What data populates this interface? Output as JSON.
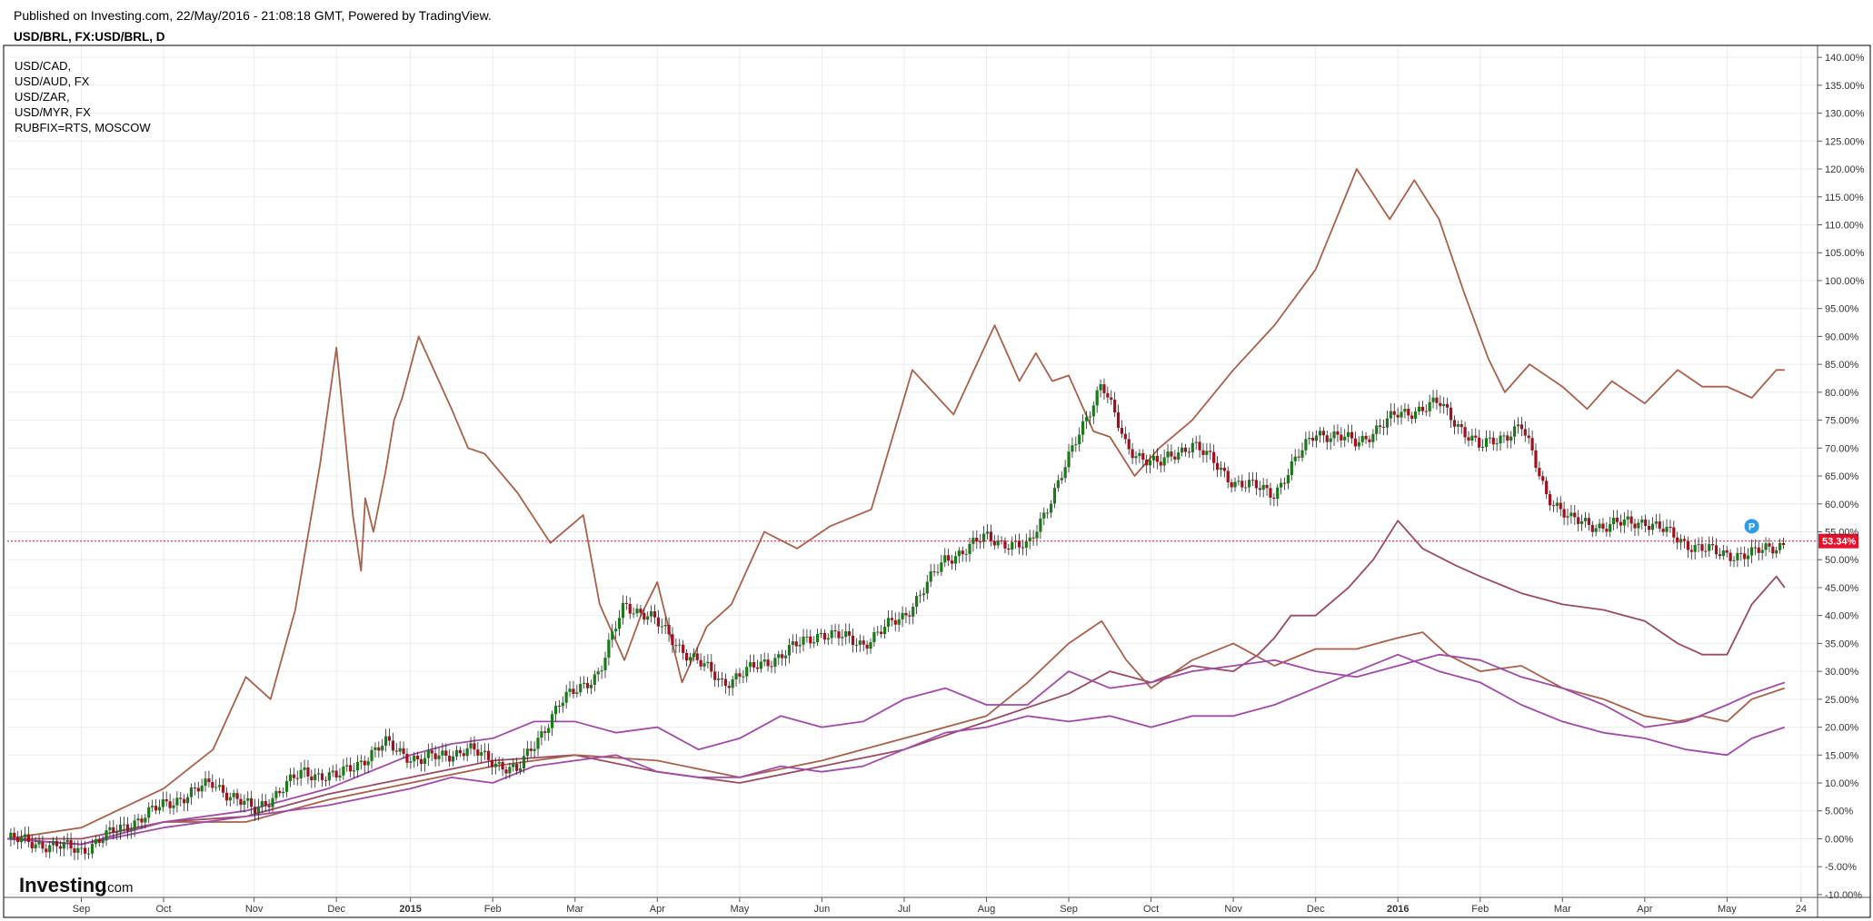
{
  "header": {
    "published": "Published on Investing.com, 22/May/2016 - 21:08:18 GMT, Powered by TradingView.",
    "symbol": "USD/BRL, FX:USD/BRL, D"
  },
  "legend": [
    "USD/CAD,",
    "USD/AUD, FX",
    "USD/ZAR,",
    "USD/MYR, FX",
    "RUBFIX=RTS, MOSCOW"
  ],
  "logo": {
    "brand": "Investing",
    "suffix": ".com"
  },
  "colors": {
    "background": "#ffffff",
    "grid": "#ececec",
    "frame": "#000000",
    "candle_up": "#1a7a1a",
    "candle_down": "#a0101e",
    "rub": "#a8604a",
    "zar": "#9a4a62",
    "brown": "#a8604a",
    "purple": "#a04aa8",
    "price_line": "#e8102a",
    "badge": "#2e9be8"
  },
  "chart_data": {
    "type": "line",
    "title": "USD/BRL, FX:USD/BRL, D",
    "y_unit": "%",
    "ylim": [
      -10.5,
      141
    ],
    "y_ticks": [
      "140.00%",
      "135.00%",
      "130.00%",
      "125.00%",
      "120.00%",
      "115.00%",
      "110.00%",
      "105.00%",
      "100.00%",
      "95.00%",
      "90.00%",
      "85.00%",
      "80.00%",
      "75.00%",
      "70.00%",
      "65.00%",
      "60.00%",
      "55.00%",
      "50.00%",
      "45.00%",
      "40.00%",
      "35.00%",
      "30.00%",
      "25.00%",
      "20.00%",
      "15.00%",
      "10.00%",
      "5.00%",
      "0.00%",
      "-5.00%",
      "-10.00%"
    ],
    "x_ticks": [
      {
        "label": "Sep",
        "bold": false
      },
      {
        "label": "Oct",
        "bold": false
      },
      {
        "label": "Nov",
        "bold": false
      },
      {
        "label": "Dec",
        "bold": false
      },
      {
        "label": "2015",
        "bold": true
      },
      {
        "label": "Feb",
        "bold": false
      },
      {
        "label": "Mar",
        "bold": false
      },
      {
        "label": "Apr",
        "bold": false
      },
      {
        "label": "May",
        "bold": false
      },
      {
        "label": "Jun",
        "bold": false
      },
      {
        "label": "Jul",
        "bold": false
      },
      {
        "label": "Aug",
        "bold": false
      },
      {
        "label": "Sep",
        "bold": false
      },
      {
        "label": "Oct",
        "bold": false
      },
      {
        "label": "Nov",
        "bold": false
      },
      {
        "label": "Dec",
        "bold": false
      },
      {
        "label": "2016",
        "bold": true
      },
      {
        "label": "Feb",
        "bold": false
      },
      {
        "label": "Mar",
        "bold": false
      },
      {
        "label": "Apr",
        "bold": false
      },
      {
        "label": "May",
        "bold": false
      },
      {
        "label": "24",
        "bold": false
      }
    ],
    "x_tick_values": [
      0.9,
      1.9,
      3.0,
      4.0,
      4.9,
      5.9,
      6.9,
      7.9,
      8.9,
      9.9,
      10.9,
      11.9,
      12.9,
      13.9,
      14.9,
      15.9,
      16.9,
      17.9,
      18.9,
      19.9,
      20.9,
      21.8
    ],
    "x_range": [
      0,
      22
    ],
    "last_value_label": "53.34%",
    "last_value": 53.34,
    "marker_label": "P",
    "marker_x": 21.2,
    "marker_y": 56,
    "main_series": {
      "name": "USD/BRL",
      "style": "candles",
      "x": [
        0,
        0.9,
        1.9,
        2.5,
        3.0,
        3.6,
        4.0,
        4.6,
        5.0,
        5.6,
        6.2,
        6.7,
        7.2,
        7.5,
        7.8,
        8.2,
        8.7,
        9.0,
        9.4,
        9.9,
        10.4,
        10.9,
        11.4,
        11.9,
        12.4,
        12.9,
        13.3,
        13.6,
        14.0,
        14.4,
        14.9,
        15.4,
        15.9,
        16.4,
        16.9,
        17.4,
        17.9,
        18.4,
        18.7,
        19.0,
        19.4,
        19.9,
        20.4,
        20.8,
        21.2,
        21.6
      ],
      "values": [
        0,
        -2,
        6,
        10,
        5,
        12,
        11,
        17,
        14,
        16,
        12,
        24,
        30,
        42,
        40,
        34,
        28,
        30,
        33,
        37,
        35,
        40,
        50,
        54,
        52,
        68,
        82,
        70,
        67,
        71,
        64,
        62,
        73,
        71,
        76,
        78,
        70,
        74,
        62,
        57,
        56,
        57,
        53,
        51,
        51,
        53
      ]
    },
    "series": [
      {
        "name": "RUBFIX=RTS",
        "color_key": "rub",
        "x": [
          0,
          0.9,
          1.9,
          2.5,
          2.9,
          3.2,
          3.5,
          3.8,
          4.0,
          4.2,
          4.3,
          4.35,
          4.45,
          4.6,
          4.7,
          4.8,
          5.0,
          5.4,
          5.6,
          5.8,
          6.2,
          6.6,
          7.0,
          7.2,
          7.5,
          7.7,
          7.9,
          8.2,
          8.5,
          8.8,
          9.2,
          9.6,
          10.0,
          10.5,
          11.0,
          11.5,
          12.0,
          12.3,
          12.5,
          12.7,
          12.9,
          13.2,
          13.4,
          13.7,
          14.0,
          14.4,
          14.9,
          15.4,
          15.9,
          16.4,
          16.8,
          17.1,
          17.4,
          17.7,
          18.0,
          18.2,
          18.5,
          18.9,
          19.2,
          19.5,
          19.9,
          20.3,
          20.6,
          20.9,
          21.2,
          21.5,
          21.6
        ],
        "values": [
          0,
          2,
          9,
          16,
          29,
          25,
          41,
          67,
          88,
          58,
          48,
          61,
          55,
          66,
          75,
          79,
          90,
          77,
          70,
          69,
          62,
          53,
          58,
          42,
          32,
          40,
          46,
          28,
          38,
          42,
          55,
          52,
          56,
          59,
          84,
          76,
          92,
          82,
          87,
          82,
          83,
          73,
          72,
          65,
          70,
          75,
          84,
          92,
          102,
          120,
          111,
          118,
          111,
          98,
          86,
          80,
          85,
          81,
          77,
          82,
          78,
          84,
          81,
          81,
          79,
          84,
          84
        ]
      },
      {
        "name": "USD/ZAR",
        "color_key": "zar",
        "x": [
          0,
          0.9,
          1.9,
          2.9,
          3.9,
          4.9,
          5.9,
          6.9,
          7.9,
          8.9,
          9.9,
          10.9,
          11.9,
          12.9,
          13.4,
          13.9,
          14.4,
          14.9,
          15.2,
          15.4,
          15.6,
          15.9,
          16.3,
          16.6,
          16.9,
          17.2,
          17.6,
          17.9,
          18.4,
          18.9,
          19.4,
          19.9,
          20.3,
          20.6,
          20.9,
          21.2,
          21.5,
          21.6
        ],
        "values": [
          0,
          0,
          3,
          4,
          8,
          11,
          14,
          15,
          12,
          10,
          13,
          16,
          21,
          26,
          30,
          28,
          31,
          30,
          33,
          36,
          40,
          40,
          45,
          50,
          57,
          52,
          49,
          47,
          44,
          42,
          41,
          39,
          35,
          33,
          33,
          42,
          47,
          45
        ]
      },
      {
        "name": "USD/MYR",
        "color_key": "brown",
        "x": [
          0,
          0.9,
          1.9,
          2.9,
          3.9,
          4.9,
          5.9,
          6.9,
          7.9,
          8.9,
          9.9,
          10.9,
          11.9,
          12.4,
          12.9,
          13.3,
          13.6,
          13.9,
          14.4,
          14.9,
          15.4,
          15.9,
          16.4,
          16.9,
          17.2,
          17.5,
          17.9,
          18.4,
          18.9,
          19.4,
          19.9,
          20.3,
          20.6,
          20.9,
          21.2,
          21.6
        ],
        "values": [
          0,
          -1,
          3,
          3,
          7,
          10,
          13,
          15,
          14,
          11,
          14,
          18,
          22,
          28,
          35,
          39,
          32,
          27,
          32,
          35,
          31,
          34,
          34,
          36,
          37,
          33,
          30,
          31,
          27,
          25,
          22,
          21,
          22,
          21,
          25,
          27
        ]
      },
      {
        "name": "USD/CAD",
        "color_key": "purple",
        "x": [
          0,
          0.9,
          1.9,
          2.9,
          3.9,
          4.9,
          5.4,
          5.9,
          6.4,
          6.9,
          7.4,
          7.9,
          8.4,
          8.9,
          9.4,
          9.9,
          10.4,
          10.9,
          11.4,
          11.9,
          12.4,
          12.9,
          13.4,
          13.9,
          14.4,
          14.9,
          15.4,
          15.9,
          16.4,
          16.9,
          17.4,
          17.9,
          18.4,
          18.9,
          19.4,
          19.9,
          20.4,
          20.9,
          21.2,
          21.6
        ],
        "values": [
          0,
          -1,
          3,
          5,
          9,
          15,
          17,
          18,
          21,
          21,
          19,
          20,
          16,
          18,
          22,
          20,
          21,
          25,
          27,
          24,
          24,
          30,
          27,
          28,
          30,
          31,
          32,
          30,
          29,
          31,
          33,
          32,
          29,
          27,
          24,
          20,
          21,
          24,
          26,
          28
        ]
      },
      {
        "name": "USD/AUD",
        "color_key": "purple",
        "x": [
          0,
          0.9,
          1.9,
          2.9,
          3.9,
          4.9,
          5.4,
          5.9,
          6.4,
          6.9,
          7.4,
          7.9,
          8.4,
          8.9,
          9.4,
          9.9,
          10.4,
          10.9,
          11.4,
          11.9,
          12.4,
          12.9,
          13.4,
          13.9,
          14.4,
          14.9,
          15.4,
          15.9,
          16.4,
          16.9,
          17.4,
          17.9,
          18.4,
          18.9,
          19.4,
          19.9,
          20.4,
          20.9,
          21.2,
          21.6
        ],
        "values": [
          0,
          -1,
          2,
          4,
          6,
          9,
          11,
          10,
          13,
          14,
          15,
          12,
          11,
          11,
          13,
          12,
          13,
          16,
          19,
          20,
          22,
          21,
          22,
          20,
          22,
          22,
          24,
          27,
          30,
          33,
          30,
          28,
          24,
          21,
          19,
          18,
          16,
          15,
          18,
          20
        ]
      }
    ]
  }
}
